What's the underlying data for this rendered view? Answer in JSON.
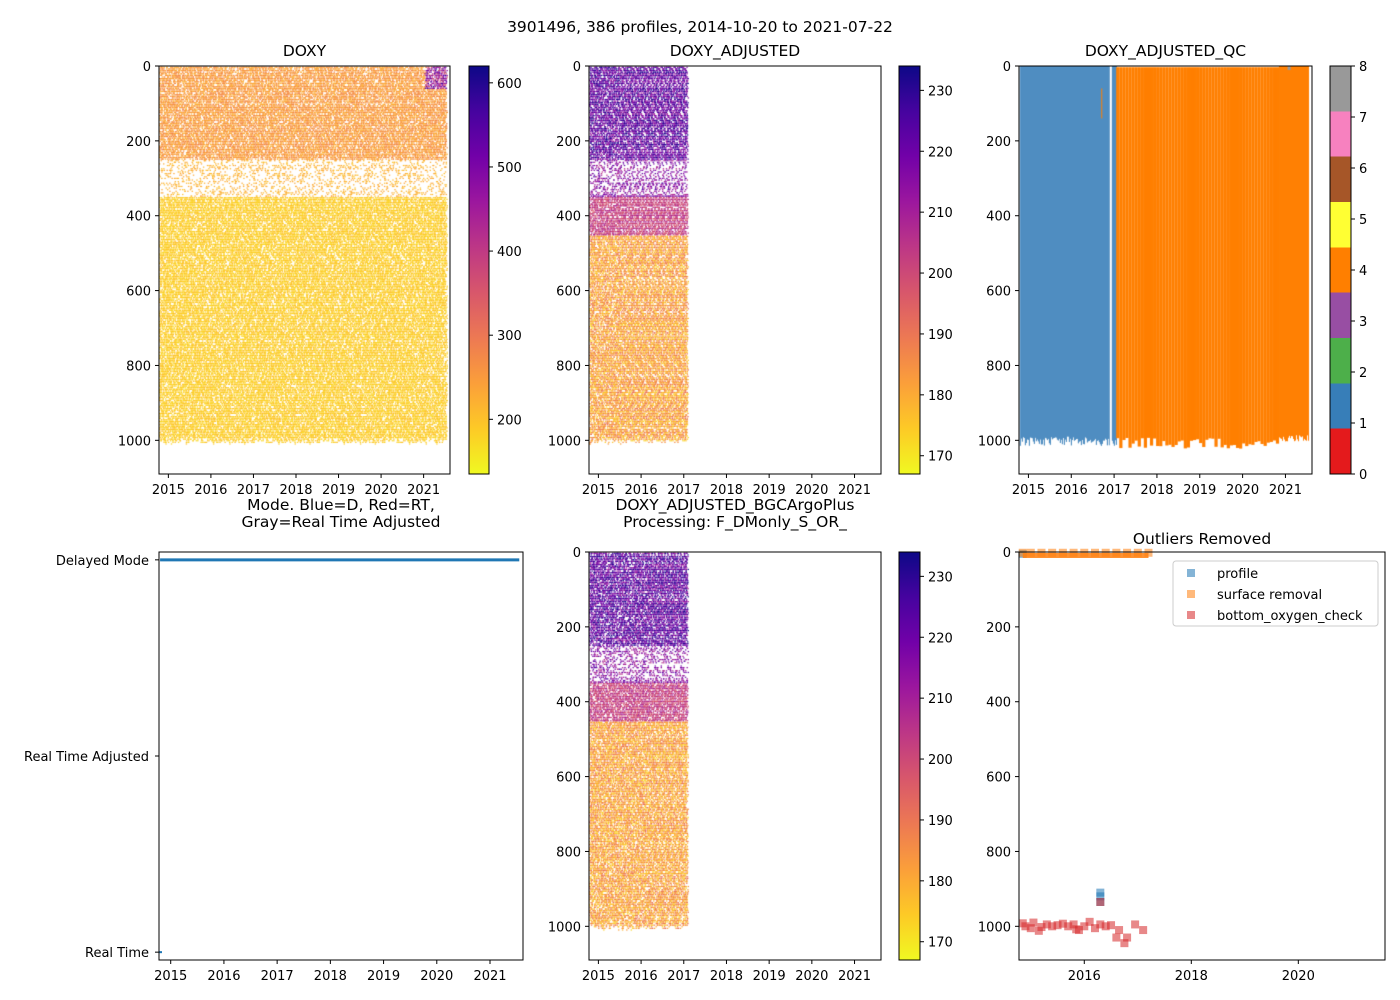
{
  "figure": {
    "suptitle": "3901496, 386 profiles, 2014-10-20 to 2021-07-22"
  },
  "colors": {
    "plasma": [
      "#f0f921",
      "#fdca26",
      "#fb9f3a",
      "#ed7953",
      "#d8576b",
      "#bd3786",
      "#9c179e",
      "#7201a8",
      "#46039f",
      "#0d0887"
    ],
    "qc": [
      "#e41a1c",
      "#377eb8",
      "#4daf4a",
      "#984ea3",
      "#ff7f00",
      "#ffff33",
      "#a65628",
      "#f781bf",
      "#999999"
    ],
    "mode_line": "#1f77b4",
    "profile": "#1f77b4",
    "surface_removal": "#ff7f0e",
    "bottom_oxygen_check": "#d62728"
  },
  "chart_data": [
    {
      "id": "doxy",
      "type": "heatmap",
      "title": "DOXY",
      "x_ticks": [
        "2015",
        "2016",
        "2017",
        "2018",
        "2019",
        "2020",
        "2021"
      ],
      "x_tick_values": [
        2015,
        2016,
        2017,
        2018,
        2019,
        2020,
        2021
      ],
      "xlim": [
        2014.78,
        2021.62
      ],
      "y_ticks": [
        "0",
        "200",
        "400",
        "600",
        "800",
        "1000"
      ],
      "y_tick_values": [
        0,
        200,
        400,
        600,
        800,
        1000
      ],
      "ylim": [
        0,
        1090
      ],
      "y_inverted": true,
      "colorbar": {
        "ticks": [
          "200",
          "300",
          "400",
          "500",
          "600"
        ],
        "tick_values": [
          200,
          300,
          400,
          500,
          600
        ],
        "range": [
          135,
          620
        ]
      },
      "data_time_range": [
        2014.8,
        2021.55
      ],
      "depth_max": 1000,
      "typical_values": {
        "upper_0_250": 250,
        "gap_250_350": "sparse",
        "lower_350_1000": 185
      }
    },
    {
      "id": "doxy-adjusted",
      "type": "heatmap",
      "title": "DOXY_ADJUSTED",
      "x_ticks": [
        "2015",
        "2016",
        "2017",
        "2018",
        "2019",
        "2020",
        "2021"
      ],
      "x_tick_values": [
        2015,
        2016,
        2017,
        2018,
        2019,
        2020,
        2021
      ],
      "xlim": [
        2014.78,
        2021.62
      ],
      "y_ticks": [
        "0",
        "200",
        "400",
        "600",
        "800",
        "1000"
      ],
      "y_tick_values": [
        0,
        200,
        400,
        600,
        800,
        1000
      ],
      "ylim": [
        0,
        1090
      ],
      "y_inverted": true,
      "colorbar": {
        "ticks": [
          "170",
          "180",
          "190",
          "200",
          "210",
          "220",
          "230"
        ],
        "tick_values": [
          170,
          180,
          190,
          200,
          210,
          220,
          230
        ],
        "range": [
          167,
          234
        ]
      },
      "data_time_range": [
        2014.8,
        2017.1
      ],
      "depth_max": 1000
    },
    {
      "id": "doxy-adjusted-qc",
      "type": "heatmap",
      "title": "DOXY_ADJUSTED_QC",
      "x_ticks": [
        "2015",
        "2016",
        "2017",
        "2018",
        "2019",
        "2020",
        "2021"
      ],
      "x_tick_values": [
        2015,
        2016,
        2017,
        2018,
        2019,
        2020,
        2021
      ],
      "xlim": [
        2014.78,
        2021.62
      ],
      "y_ticks": [
        "0",
        "200",
        "400",
        "600",
        "800",
        "1000"
      ],
      "y_tick_values": [
        0,
        200,
        400,
        600,
        800,
        1000
      ],
      "ylim": [
        0,
        1090
      ],
      "y_inverted": true,
      "colorbar": {
        "ticks": [
          "0",
          "1",
          "2",
          "3",
          "4",
          "5",
          "6",
          "7",
          "8"
        ],
        "tick_values": [
          0,
          1,
          2,
          3,
          4,
          5,
          6,
          7,
          8
        ],
        "range": [
          0,
          8
        ]
      },
      "qc1_time_range": [
        2014.8,
        2017.05
      ],
      "qc4_time_range": [
        2017.05,
        2021.55
      ],
      "solid_qc4_from": 2020.85,
      "depth_max": 1000
    },
    {
      "id": "mode",
      "type": "line",
      "title": "Mode. Blue=D, Red=RT,\nGray=Real Time Adjusted",
      "x_ticks": [
        "2015",
        "2016",
        "2017",
        "2018",
        "2019",
        "2020",
        "2021"
      ],
      "x_tick_values": [
        2015,
        2016,
        2017,
        2018,
        2019,
        2020,
        2021
      ],
      "xlim": [
        2014.78,
        2021.62
      ],
      "y_labels": [
        "Delayed Mode",
        "Real Time Adjusted",
        "Real Time"
      ],
      "y_values": [
        2,
        1,
        0
      ],
      "ylim": [
        -0.04,
        2.04
      ],
      "series": [
        {
          "name": "mode",
          "x": [
            2014.8,
            2021.55
          ],
          "y": [
            2,
            2
          ]
        }
      ]
    },
    {
      "id": "doxy-adjusted-bgc",
      "type": "heatmap",
      "title": "DOXY_ADJUSTED_BGCArgoPlus\nProcessing: F_DMonly_S_OR_",
      "x_ticks": [
        "2015",
        "2016",
        "2017",
        "2018",
        "2019",
        "2020",
        "2021"
      ],
      "x_tick_values": [
        2015,
        2016,
        2017,
        2018,
        2019,
        2020,
        2021
      ],
      "xlim": [
        2014.78,
        2021.62
      ],
      "y_ticks": [
        "0",
        "200",
        "400",
        "600",
        "800",
        "1000"
      ],
      "y_tick_values": [
        0,
        200,
        400,
        600,
        800,
        1000
      ],
      "ylim": [
        0,
        1090
      ],
      "y_inverted": true,
      "colorbar": {
        "ticks": [
          "170",
          "180",
          "190",
          "200",
          "210",
          "220",
          "230"
        ],
        "tick_values": [
          170,
          180,
          190,
          200,
          210,
          220,
          230
        ],
        "range": [
          167,
          234
        ]
      },
      "data_time_range": [
        2014.8,
        2017.1
      ],
      "depth_max": 1000
    },
    {
      "id": "outliers",
      "type": "scatter",
      "title": "Outliers Removed",
      "x_ticks": [
        "2016",
        "2018",
        "2020"
      ],
      "x_tick_values": [
        2016,
        2018,
        2020
      ],
      "xlim": [
        2014.78,
        2021.62
      ],
      "y_ticks": [
        "0",
        "200",
        "400",
        "600",
        "800",
        "1000"
      ],
      "y_tick_values": [
        0,
        200,
        400,
        600,
        800,
        1000
      ],
      "ylim": [
        0,
        1090
      ],
      "y_inverted": true,
      "legend": {
        "position": "top-right",
        "entries": [
          "profile",
          "surface removal",
          "bottom_oxygen_check"
        ]
      },
      "series": [
        {
          "name": "profile",
          "x": [
            2014.85,
            2016.3,
            2016.3,
            2016.3
          ],
          "y": [
            5,
            910,
            920,
            935
          ]
        },
        {
          "name": "surface removal",
          "x": [
            2014.85,
            2015.0,
            2015.2,
            2015.4,
            2015.6,
            2015.8,
            2016.0,
            2016.2,
            2016.4,
            2016.6,
            2016.8,
            2017.0,
            2017.2
          ],
          "y": [
            2,
            2,
            2,
            2,
            2,
            2,
            2,
            2,
            2,
            2,
            2,
            2,
            2
          ]
        },
        {
          "name": "bottom_oxygen_check",
          "x": [
            2014.85,
            2014.9,
            2015.0,
            2015.05,
            2015.15,
            2015.2,
            2015.3,
            2015.4,
            2015.5,
            2015.6,
            2015.7,
            2015.8,
            2015.9,
            2016.0,
            2016.1,
            2016.2,
            2016.3,
            2016.4,
            2016.5,
            2016.6,
            2016.65,
            2016.75,
            2016.8,
            2016.95,
            2017.1,
            2015.85,
            2016.3
          ],
          "y": [
            992,
            1000,
            1005,
            990,
            1012,
            1002,
            995,
            1000,
            997,
            993,
            1000,
            995,
            1010,
            1000,
            988,
            1005,
            995,
            1000,
            997,
            1030,
            1010,
            1045,
            1030,
            995,
            1010,
            1008,
            935
          ]
        }
      ]
    }
  ]
}
